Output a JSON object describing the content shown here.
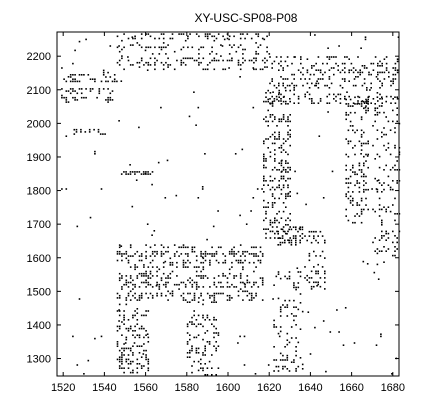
{
  "chart_data": {
    "type": "scatter",
    "title": "XY-USC-SP08-P08",
    "xlabel": "",
    "ylabel": "",
    "xlim": [
      1517,
      1683
    ],
    "ylim": [
      1248,
      2272
    ],
    "xticks": [
      1520,
      1540,
      1560,
      1580,
      1600,
      1620,
      1640,
      1660,
      1680
    ],
    "yticks": [
      1300,
      1400,
      1500,
      1600,
      1700,
      1800,
      1900,
      2000,
      2100,
      2200
    ],
    "grid": false,
    "legend": "none",
    "marker_color": "#000000",
    "marker": "dot",
    "clusters": [
      {
        "x": [
          1519,
          1546
        ],
        "y": [
          2125,
          2160
        ],
        "density": 0.28
      },
      {
        "x": [
          1519,
          1544
        ],
        "y": [
          2060,
          2105
        ],
        "density": 0.26
      },
      {
        "x": [
          1546,
          1620
        ],
        "y": [
          2160,
          2268
        ],
        "density": 0.16
      },
      {
        "x": [
          1620,
          1683
        ],
        "y": [
          2060,
          2200
        ],
        "density": 0.18
      },
      {
        "x": [
          1617,
          1630
        ],
        "y": [
          1650,
          2100
        ],
        "density": 0.22
      },
      {
        "x": [
          1657,
          1668
        ],
        "y": [
          1700,
          2080
        ],
        "density": 0.2
      },
      {
        "x": [
          1670,
          1683
        ],
        "y": [
          1580,
          2100
        ],
        "density": 0.12
      },
      {
        "x": [
          1546,
          1617
        ],
        "y": [
          1470,
          1640
        ],
        "density": 0.24
      },
      {
        "x": [
          1546,
          1562
        ],
        "y": [
          1260,
          1470
        ],
        "density": 0.22
      },
      {
        "x": [
          1580,
          1596
        ],
        "y": [
          1250,
          1470
        ],
        "density": 0.2
      },
      {
        "x": [
          1622,
          1636
        ],
        "y": [
          1260,
          1560
        ],
        "density": 0.14
      },
      {
        "x": [
          1637,
          1647
        ],
        "y": [
          1500,
          1680
        ],
        "density": 0.18
      },
      {
        "x": [
          1624,
          1636
        ],
        "y": [
          1640,
          1700
        ],
        "density": 0.32
      },
      {
        "x": [
          1548,
          1564
        ],
        "y": [
          1845,
          1858
        ],
        "density": 0.5
      },
      {
        "x": [
          1525,
          1540
        ],
        "y": [
          1970,
          1990
        ],
        "density": 0.3
      },
      {
        "x": [
          1519,
          1683
        ],
        "y": [
          1248,
          2272
        ],
        "density": 0.006
      }
    ]
  }
}
